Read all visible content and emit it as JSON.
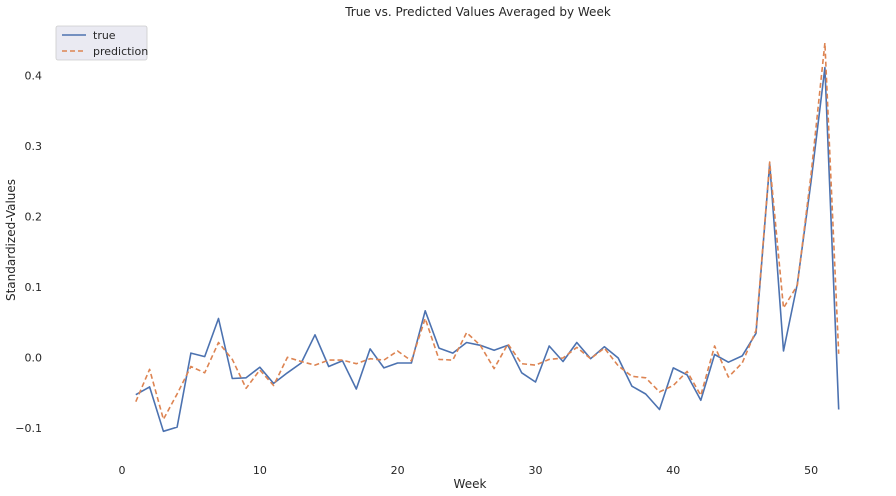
{
  "chart_data": {
    "type": "line",
    "title": "True vs. Predicted Values Averaged by Week",
    "xlabel": "Week",
    "ylabel": "Standardized-Values",
    "xlim": [
      -4.5,
      55
    ],
    "ylim": [
      -0.14,
      0.47
    ],
    "x_ticks": [
      0,
      10,
      20,
      30,
      40,
      50
    ],
    "y_ticks": [
      -0.1,
      0.0,
      0.1,
      0.2,
      0.3,
      0.4
    ],
    "x_tick_labels": [
      "0",
      "10",
      "20",
      "30",
      "40",
      "50"
    ],
    "y_tick_labels": [
      "−0.1",
      "0.0",
      "0.1",
      "0.2",
      "0.3",
      "0.4"
    ],
    "grid": false,
    "legend_position": "top-left",
    "x": [
      1,
      2,
      3,
      4,
      5,
      6,
      7,
      8,
      9,
      10,
      11,
      12,
      13,
      14,
      15,
      16,
      17,
      18,
      19,
      20,
      21,
      22,
      23,
      24,
      25,
      26,
      27,
      28,
      29,
      30,
      31,
      32,
      33,
      34,
      35,
      36,
      37,
      38,
      39,
      40,
      41,
      42,
      43,
      44,
      45,
      46,
      47,
      48,
      49,
      50,
      51,
      52
    ],
    "series": [
      {
        "name": "true",
        "color": "#4c72b0",
        "dash": "solid",
        "values": [
          -0.053,
          -0.042,
          -0.105,
          -0.099,
          0.006,
          0.001,
          0.055,
          -0.03,
          -0.029,
          -0.014,
          -0.037,
          -0.022,
          -0.008,
          0.032,
          -0.013,
          -0.005,
          -0.045,
          0.012,
          -0.015,
          -0.008,
          -0.008,
          0.066,
          0.013,
          0.006,
          0.021,
          0.017,
          0.01,
          0.017,
          -0.022,
          -0.035,
          0.016,
          -0.006,
          0.021,
          -0.002,
          0.015,
          -0.001,
          -0.041,
          -0.052,
          -0.074,
          -0.015,
          -0.025,
          -0.061,
          0.004,
          -0.007,
          0.002,
          0.034,
          0.275,
          0.009,
          0.104,
          0.25,
          0.411,
          -0.074
        ]
      },
      {
        "name": "prediction",
        "color": "#dd8452",
        "dash": "dashed",
        "values": [
          -0.063,
          -0.017,
          -0.088,
          -0.052,
          -0.013,
          -0.022,
          0.021,
          -0.003,
          -0.044,
          -0.018,
          -0.04,
          0.0,
          -0.006,
          -0.011,
          -0.004,
          -0.004,
          -0.009,
          -0.002,
          -0.004,
          0.009,
          -0.005,
          0.055,
          -0.003,
          -0.004,
          0.035,
          0.017,
          -0.016,
          0.019,
          -0.009,
          -0.011,
          -0.003,
          -0.001,
          0.014,
          -0.002,
          0.013,
          -0.012,
          -0.027,
          -0.029,
          -0.049,
          -0.04,
          -0.02,
          -0.054,
          0.016,
          -0.028,
          -0.008,
          0.038,
          0.277,
          0.07,
          0.102,
          0.26,
          0.446,
          0.005
        ]
      }
    ]
  }
}
